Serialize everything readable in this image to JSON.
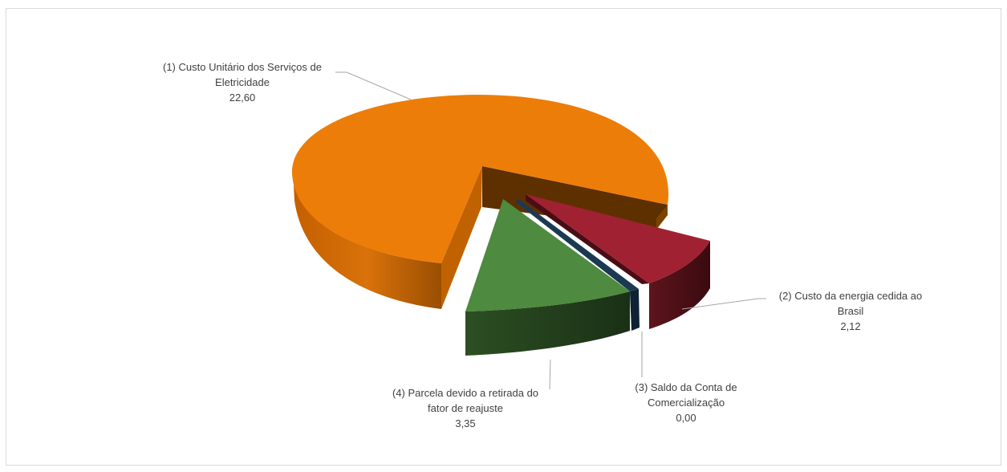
{
  "chart_data": {
    "type": "pie",
    "title": "",
    "style": "3d-exploded",
    "slices": [
      {
        "label_lines": [
          "(1) Custo Unitário dos Serviços de",
          "Eletricidade"
        ],
        "value_text": "22,60",
        "value": 22.6,
        "color": "#ed7d09"
      },
      {
        "label_lines": [
          "(2) Custo da energia cedida ao",
          "Brasil"
        ],
        "value_text": "2,12",
        "value": 2.12,
        "color": "#a02232"
      },
      {
        "label_lines": [
          "(3) Saldo da Conta de",
          "Comercialização"
        ],
        "value_text": "0,00",
        "value": 0.0,
        "color": "#1b3a52"
      },
      {
        "label_lines": [
          "(4) Parcela devido a retirada do",
          "fator de reajuste"
        ],
        "value_text": "3,35",
        "value": 3.35,
        "color": "#4e8a3f"
      }
    ]
  }
}
